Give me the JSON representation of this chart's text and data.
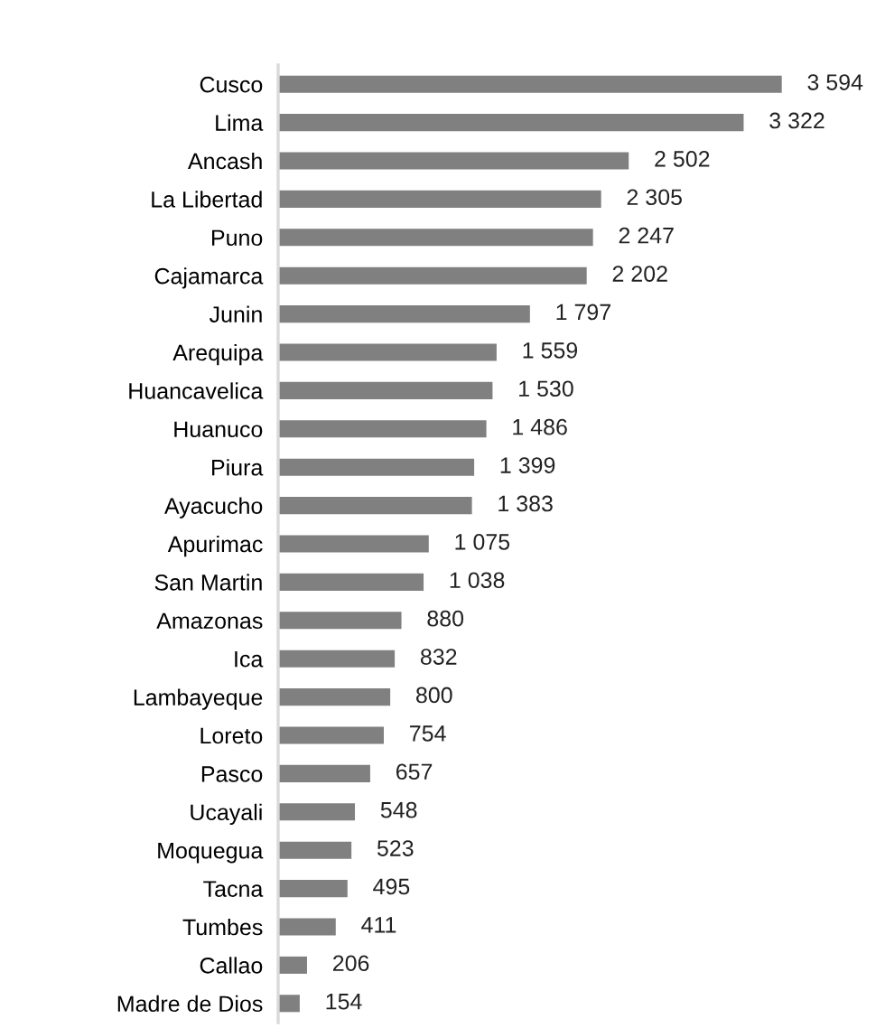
{
  "chart_data": {
    "type": "bar",
    "orientation": "horizontal",
    "color": "#808080",
    "categories": [
      "Cusco",
      "Lima",
      "Ancash",
      "La Libertad",
      "Puno",
      "Cajamarca",
      "Junin",
      "Arequipa",
      "Huancavelica",
      "Huanuco",
      "Piura",
      "Ayacucho",
      "Apurimac",
      "San Martin",
      "Amazonas",
      "Ica",
      "Lambayeque",
      "Loreto",
      "Pasco",
      "Ucayali",
      "Moquegua",
      "Tacna",
      "Tumbes",
      "Callao",
      "Madre de Dios"
    ],
    "values": [
      3594,
      3322,
      2502,
      2305,
      2247,
      2202,
      1797,
      1559,
      1530,
      1486,
      1399,
      1383,
      1075,
      1038,
      880,
      832,
      800,
      754,
      657,
      548,
      523,
      495,
      411,
      206,
      154
    ],
    "value_labels": [
      "3 594",
      "3 322",
      "2 502",
      "2 305",
      "2 247",
      "2 202",
      "1 797",
      "1 559",
      "1 530",
      "1 486",
      "1 399",
      "1 383",
      "1 075",
      "1 038",
      "880",
      "832",
      "800",
      "754",
      "657",
      "548",
      "523",
      "495",
      "411",
      "206",
      "154"
    ]
  }
}
